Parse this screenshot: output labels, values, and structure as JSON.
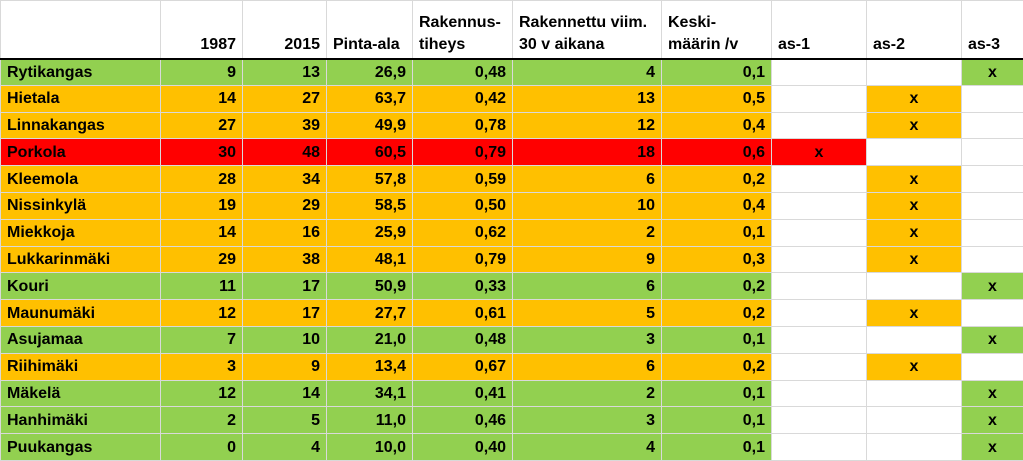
{
  "colors": {
    "green": "#92d050",
    "orange": "#ffc000",
    "red": "#ff0000"
  },
  "headers": {
    "name": "",
    "y1987": "1987",
    "y2015": "2015",
    "area": "Pinta-ala",
    "density_l1": "Rakennus-",
    "density_l2": "tiheys",
    "built_l1": "Rakennettu viim.",
    "built_l2": "30 v aikana",
    "avg_l1": "Keski-",
    "avg_l2": "määrin /v",
    "as1": "as-1",
    "as2": "as-2",
    "as3": "as-3"
  },
  "rows": [
    {
      "name": "Rytikangas",
      "y1987": "9",
      "y2015": "13",
      "area": "26,9",
      "density": "0,48",
      "built": "4",
      "avg": "0,1",
      "as1": "",
      "as2": "",
      "as3": "x",
      "color": "green"
    },
    {
      "name": "Hietala",
      "y1987": "14",
      "y2015": "27",
      "area": "63,7",
      "density": "0,42",
      "built": "13",
      "avg": "0,5",
      "as1": "",
      "as2": "x",
      "as3": "",
      "color": "orange"
    },
    {
      "name": "Linnakangas",
      "y1987": "27",
      "y2015": "39",
      "area": "49,9",
      "density": "0,78",
      "built": "12",
      "avg": "0,4",
      "as1": "",
      "as2": "x",
      "as3": "",
      "color": "orange"
    },
    {
      "name": "Porkola",
      "y1987": "30",
      "y2015": "48",
      "area": "60,5",
      "density": "0,79",
      "built": "18",
      "avg": "0,6",
      "as1": "x",
      "as2": "",
      "as3": "",
      "color": "red"
    },
    {
      "name": "Kleemola",
      "y1987": "28",
      "y2015": "34",
      "area": "57,8",
      "density": "0,59",
      "built": "6",
      "avg": "0,2",
      "as1": "",
      "as2": "x",
      "as3": "",
      "color": "orange"
    },
    {
      "name": "Nissinkylä",
      "y1987": "19",
      "y2015": "29",
      "area": "58,5",
      "density": "0,50",
      "built": "10",
      "avg": "0,4",
      "as1": "",
      "as2": "x",
      "as3": "",
      "color": "orange"
    },
    {
      "name": "Miekkoja",
      "y1987": "14",
      "y2015": "16",
      "area": "25,9",
      "density": "0,62",
      "built": "2",
      "avg": "0,1",
      "as1": "",
      "as2": "x",
      "as3": "",
      "color": "orange"
    },
    {
      "name": "Lukkarinmäki",
      "y1987": "29",
      "y2015": "38",
      "area": "48,1",
      "density": "0,79",
      "built": "9",
      "avg": "0,3",
      "as1": "",
      "as2": "x",
      "as3": "",
      "color": "orange"
    },
    {
      "name": "Kouri",
      "y1987": "11",
      "y2015": "17",
      "area": "50,9",
      "density": "0,33",
      "built": "6",
      "avg": "0,2",
      "as1": "",
      "as2": "",
      "as3": "x",
      "color": "green"
    },
    {
      "name": "Maunumäki",
      "y1987": "12",
      "y2015": "17",
      "area": "27,7",
      "density": "0,61",
      "built": "5",
      "avg": "0,2",
      "as1": "",
      "as2": "x",
      "as3": "",
      "color": "orange"
    },
    {
      "name": "Asujamaa",
      "y1987": "7",
      "y2015": "10",
      "area": "21,0",
      "density": "0,48",
      "built": "3",
      "avg": "0,1",
      "as1": "",
      "as2": "",
      "as3": "x",
      "color": "green"
    },
    {
      "name": "Riihimäki",
      "y1987": "3",
      "y2015": "9",
      "area": "13,4",
      "density": "0,67",
      "built": "6",
      "avg": "0,2",
      "as1": "",
      "as2": "x",
      "as3": "",
      "color": "orange"
    },
    {
      "name": "Mäkelä",
      "y1987": "12",
      "y2015": "14",
      "area": "34,1",
      "density": "0,41",
      "built": "2",
      "avg": "0,1",
      "as1": "",
      "as2": "",
      "as3": "x",
      "color": "green"
    },
    {
      "name": "Hanhimäki",
      "y1987": "2",
      "y2015": "5",
      "area": "11,0",
      "density": "0,46",
      "built": "3",
      "avg": "0,1",
      "as1": "",
      "as2": "",
      "as3": "x",
      "color": "green"
    },
    {
      "name": "Puukangas",
      "y1987": "0",
      "y2015": "4",
      "area": "10,0",
      "density": "0,40",
      "built": "4",
      "avg": "0,1",
      "as1": "",
      "as2": "",
      "as3": "x",
      "color": "green"
    }
  ]
}
